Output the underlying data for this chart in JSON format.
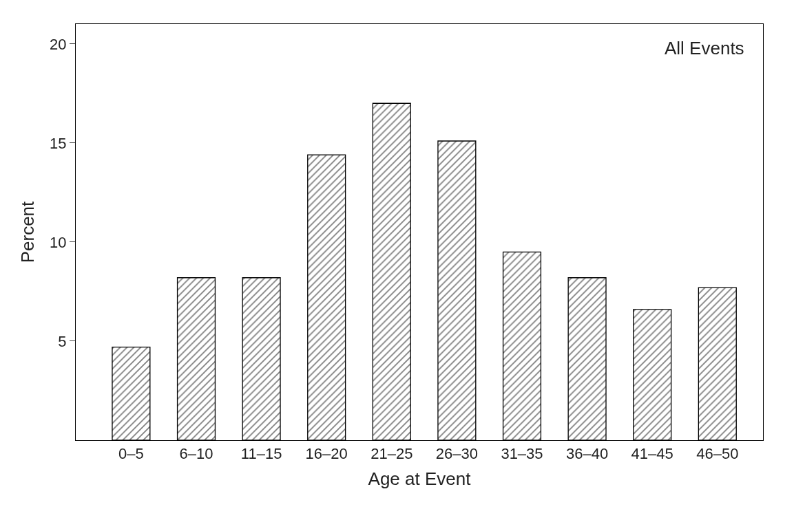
{
  "chart_data": {
    "type": "bar",
    "xlabel": "Age at Event",
    "ylabel": "Percent",
    "annotations": [
      "All Events"
    ],
    "categories": [
      "0–5",
      "6–10",
      "11–15",
      "16–20",
      "21–25",
      "26–30",
      "31–35",
      "36–40",
      "41–45",
      "46–50"
    ],
    "values": [
      4.7,
      8.2,
      8.2,
      14.4,
      17.0,
      15.1,
      9.5,
      8.2,
      6.6,
      7.7
    ],
    "color": "#000000",
    "ylim": [
      0,
      21
    ],
    "yticks": [
      5,
      10,
      15,
      20
    ]
  }
}
